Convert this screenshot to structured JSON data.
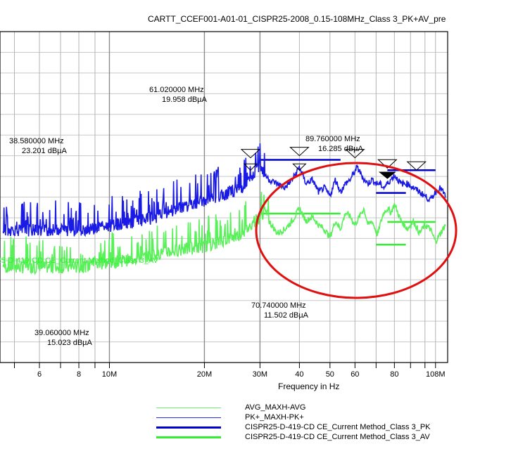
{
  "chart_data": {
    "type": "line",
    "title": "CARTT_CCEF001-A01-01_CISPR25-2008_0.15-108MHz_Class 3_PK+AV_pre",
    "xlabel": "Frequency in Hz",
    "x_scale": "log",
    "xlim_mhz": [
      4.5,
      118
    ],
    "ylim_dbuv": [
      -20,
      60
    ],
    "x_ticks": [
      {
        "mhz": 6,
        "label": "6"
      },
      {
        "mhz": 8,
        "label": "8"
      },
      {
        "mhz": 10,
        "label": "10M"
      },
      {
        "mhz": 20,
        "label": "20M"
      },
      {
        "mhz": 30,
        "label": "30M"
      },
      {
        "mhz": 40,
        "label": "40"
      },
      {
        "mhz": 50,
        "label": "50"
      },
      {
        "mhz": 60,
        "label": "60"
      },
      {
        "mhz": 80,
        "label": "80"
      },
      {
        "mhz": 108,
        "label": "108M"
      }
    ],
    "limit_label": "CISPR25-D-419-CD CE_Current Method_Class 3_AV",
    "series": [
      {
        "name": "AVG_MAXH-AVG",
        "color": "#5af05a",
        "x": [
          4.6,
          8,
          12,
          14,
          16,
          18,
          20,
          22,
          24,
          26,
          27,
          28,
          29,
          30,
          31,
          32,
          34,
          36,
          38,
          40,
          42,
          44,
          46,
          48,
          50,
          52,
          54,
          56,
          58,
          60,
          62,
          64,
          66,
          68,
          70.74,
          72,
          74,
          76,
          78,
          80,
          84,
          88,
          92,
          96,
          100,
          104,
          108,
          112,
          116
        ],
        "y": [
          3,
          3,
          5,
          6,
          7,
          7.5,
          8,
          9,
          10,
          11,
          12,
          13,
          14.5,
          15,
          16.5,
          15,
          12,
          13,
          15,
          18,
          15,
          16,
          14,
          13,
          11,
          15,
          13,
          17,
          16,
          14,
          16,
          18,
          14,
          15,
          11.5,
          14,
          17,
          18,
          17,
          19,
          15,
          13,
          15,
          12,
          14,
          13,
          10,
          12,
          14
        ]
      },
      {
        "name": "PK+_MAXH-PK+",
        "color": "#1a1ae6",
        "x": [
          4.6,
          8,
          10,
          12,
          14,
          16,
          18,
          20,
          22,
          24,
          26,
          27,
          28,
          29,
          30,
          31,
          32,
          34,
          36,
          38,
          40,
          42,
          44,
          46,
          48,
          50,
          52,
          54,
          56,
          58,
          60,
          61,
          62,
          64,
          66,
          68,
          70,
          72,
          74,
          76,
          78,
          80,
          84,
          88,
          92,
          96,
          100,
          104,
          108,
          112,
          116
        ],
        "y": [
          12,
          12,
          13,
          14,
          15,
          17,
          18,
          19,
          20,
          21,
          22,
          23,
          24,
          26,
          28,
          26,
          25,
          24,
          23,
          25,
          28,
          24,
          25,
          22,
          23,
          21,
          25,
          22,
          24,
          25,
          27,
          28,
          27,
          25,
          24,
          25,
          24,
          24,
          23,
          24,
          25,
          26,
          24,
          24,
          23,
          22,
          21,
          20,
          22,
          23,
          21
        ]
      }
    ],
    "limits": [
      {
        "name": "CISPR25-D-419-CD CE_Current Method_Class 3_PK",
        "color": "#0000cc",
        "segments": [
          [
            30,
            54,
            29
          ],
          [
            70,
            87,
            21
          ],
          [
            76,
            108,
            26.5
          ]
        ]
      },
      {
        "name": "CISPR25-D-419-CD CE_Current Method_Class 3_AV",
        "color": "#33ee33",
        "segments": [
          [
            30,
            54,
            16
          ],
          [
            70,
            87,
            8.5
          ],
          [
            76,
            108,
            14
          ]
        ]
      }
    ],
    "annotations": [
      {
        "freq": "61.020000 MHz",
        "level": "19.958 dBµA"
      },
      {
        "freq": "38.580000 MHz",
        "level": "23.201 dBµA"
      },
      {
        "freq": "89.760000 MHz",
        "level": "16.285 dBµA"
      },
      {
        "freq": "70.740000 MHz",
        "level": "11.502 dBµA"
      },
      {
        "freq": "39.060000 MHz",
        "level": "15.023 dBµA"
      }
    ]
  },
  "legend": [
    {
      "label": "AVG_MAXH-AVG",
      "color": "#6cf06c",
      "width": 1
    },
    {
      "label": "PK+_MAXH-PK+",
      "color": "#2a2af0",
      "width": 1
    },
    {
      "label": "CISPR25-D-419-CD CE_Current Method_Class 3_PK",
      "color": "#0000cc",
      "width": 3
    },
    {
      "label": "CISPR25-D-419-CD CE_Current Method_Class 3_AV",
      "color": "#33ee33",
      "width": 3
    }
  ]
}
